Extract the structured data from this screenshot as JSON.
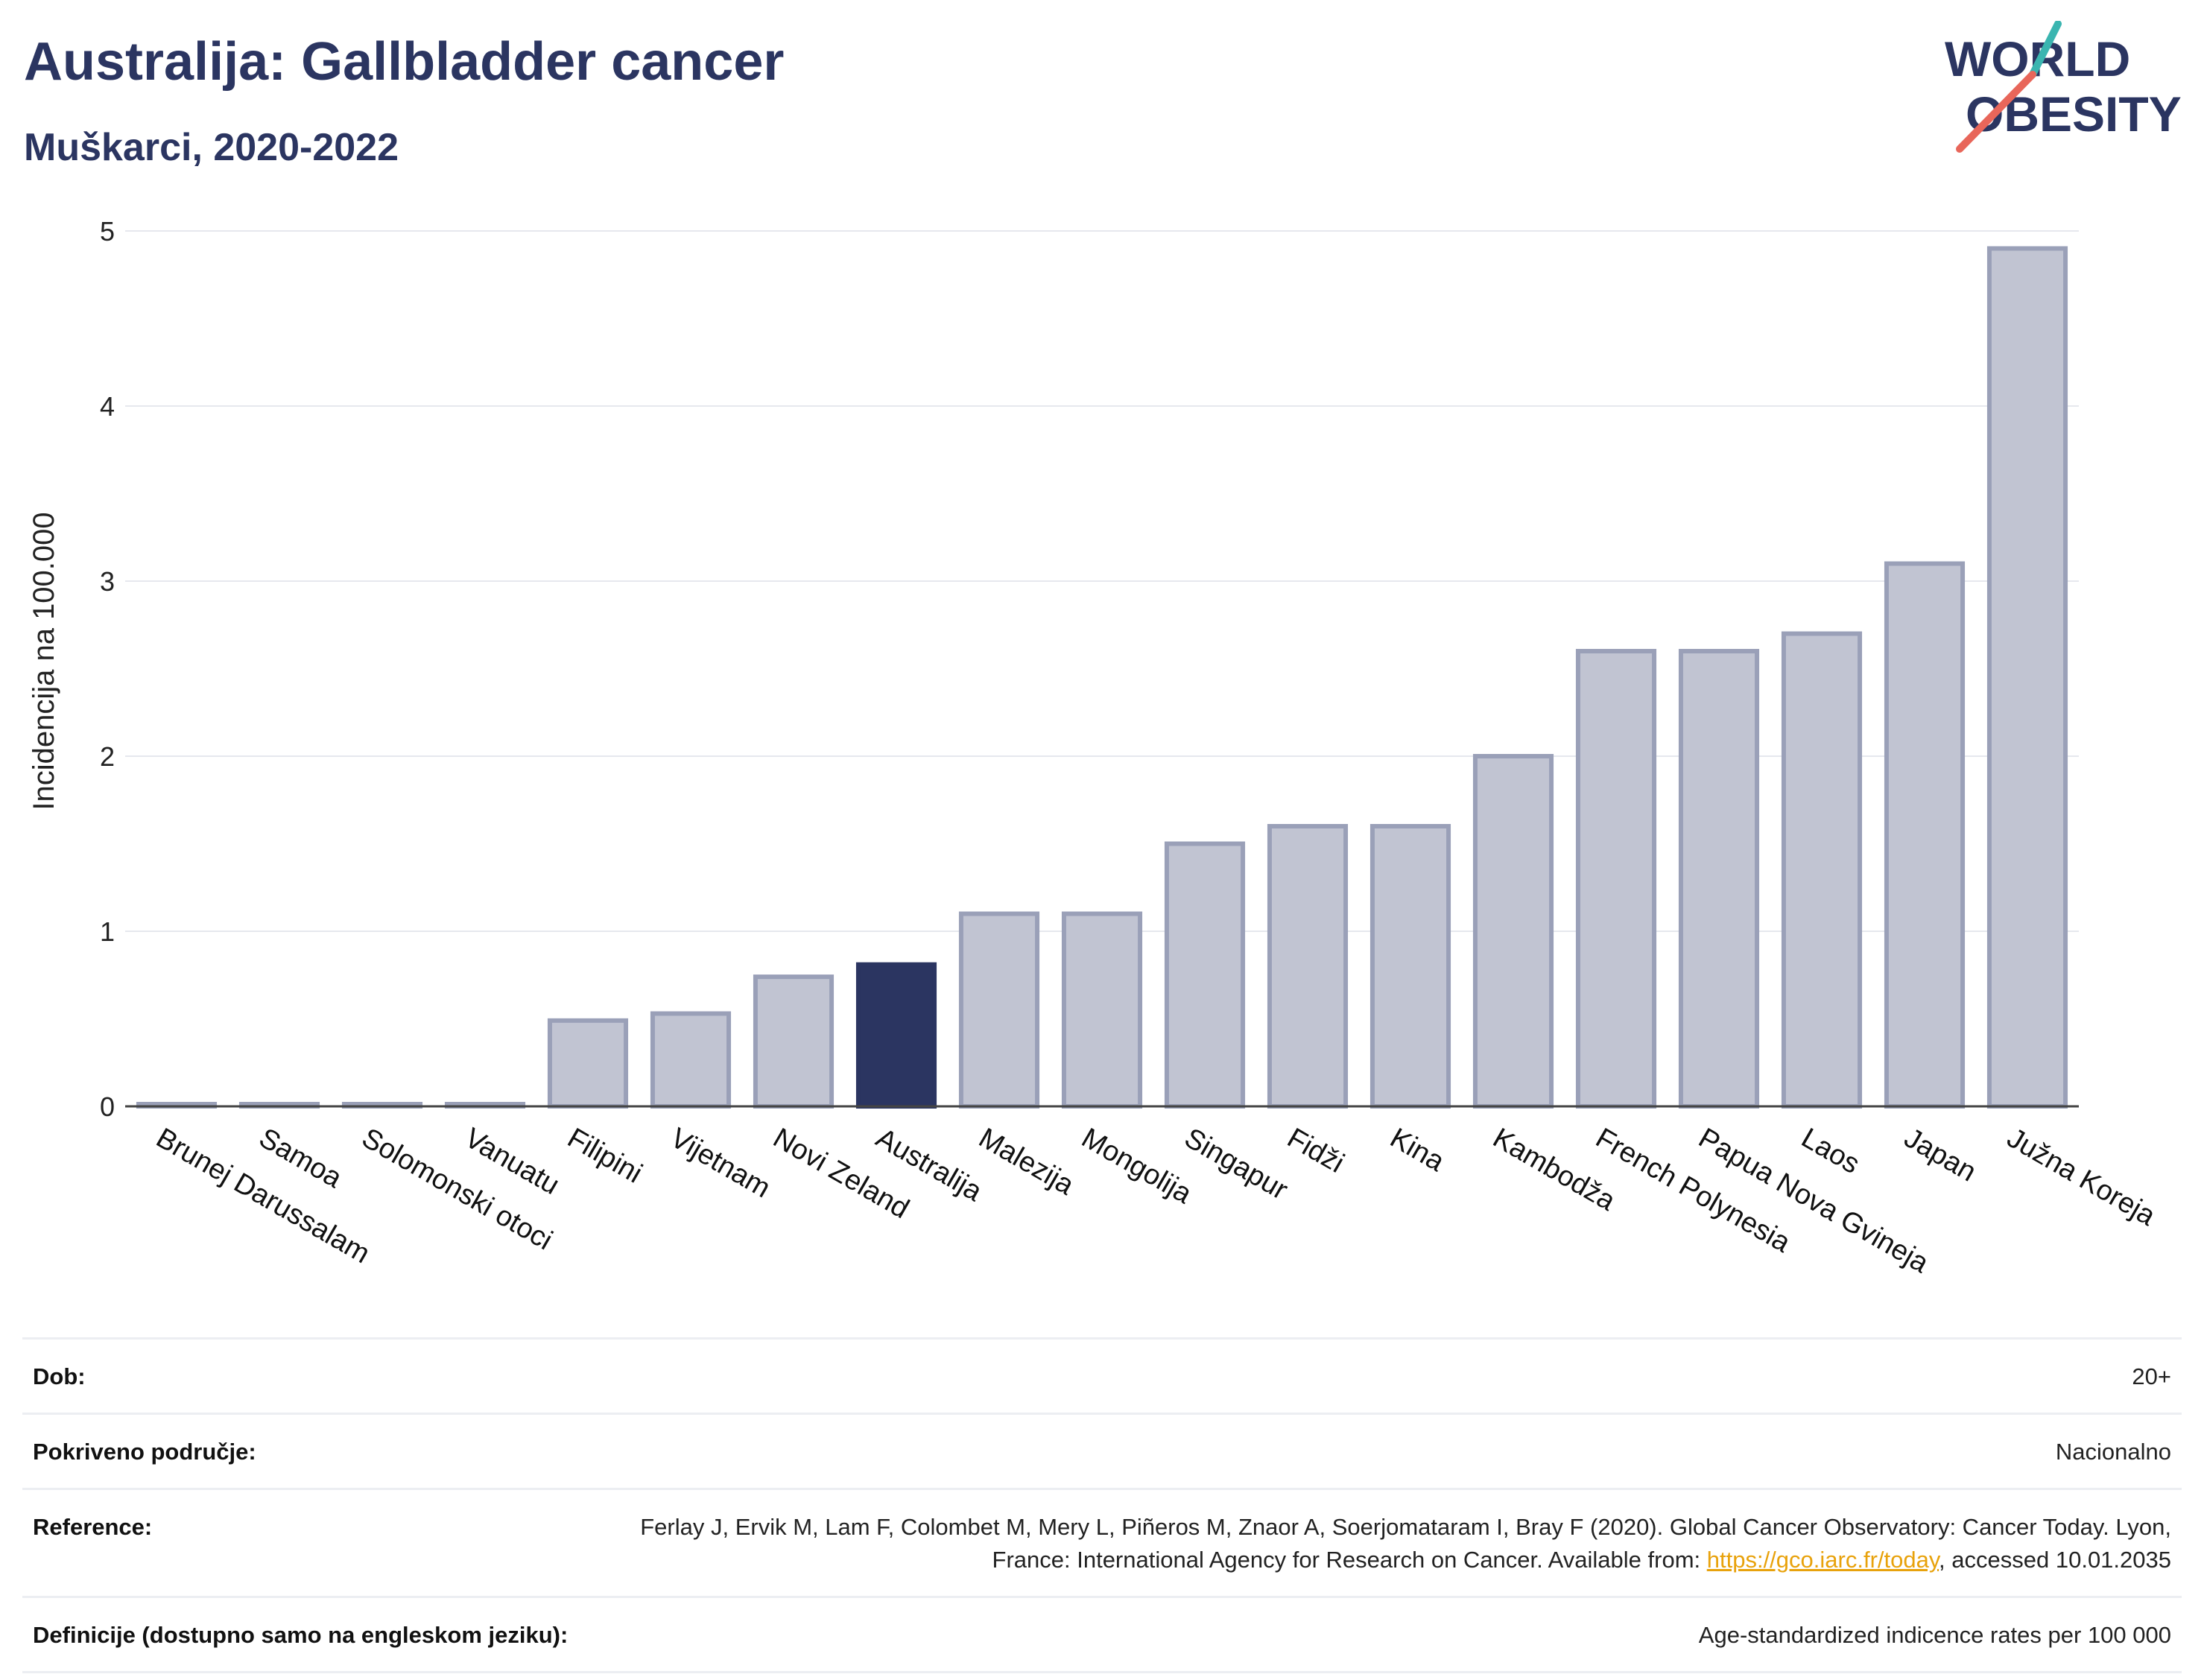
{
  "header": {
    "title": "Australija: Gallbladder cancer",
    "subtitle": "Muškarci, 2020-2022"
  },
  "logo": {
    "line1": "WORLD",
    "line2": "OBESITY",
    "accent_colors": [
      "#3ab5b0",
      "#e8665a"
    ]
  },
  "chart_data": {
    "type": "bar",
    "ylabel": "Incidencija na 100.000",
    "ylim": [
      0,
      5
    ],
    "yticks": [
      0,
      1,
      2,
      3,
      4,
      5
    ],
    "grid": true,
    "highlight": "Australija",
    "colors": {
      "bar": "#c1c4d2",
      "bar_border": "#9aa0b8",
      "highlight": "#2b3561"
    },
    "categories": [
      "Brunej Darussalam",
      "Samoa",
      "Solomonski otoci",
      "Vanuatu",
      "Filipini",
      "Vijetnam",
      "Novi Zeland",
      "Australija",
      "Malezija",
      "Mongolija",
      "Singapur",
      "Fidži",
      "Kina",
      "Kambodža",
      "French Polynesia",
      "Papua Nova Gvineja",
      "Laos",
      "Japan",
      "Južna Koreja"
    ],
    "values": [
      0.01,
      0.01,
      0.01,
      0.01,
      0.49,
      0.53,
      0.74,
      0.81,
      1.1,
      1.1,
      1.5,
      1.6,
      1.6,
      2.0,
      2.6,
      2.6,
      2.7,
      3.1,
      4.9
    ]
  },
  "meta": [
    {
      "label": "Dob:",
      "value": "20+"
    },
    {
      "label": "Pokriveno područje:",
      "value": "Nacionalno"
    },
    {
      "label": "Reference:",
      "value_before": "Ferlay J, Ervik M, Lam F, Colombet M, Mery L, Piñeros M, Znaor A, Soerjomataram I, Bray F (2020). Global Cancer Observatory: Cancer Today. Lyon, France: International Agency for Research on Cancer. Available from: ",
      "link": "https://gco.iarc.fr/today",
      "value_after": ", accessed 10.01.2035"
    },
    {
      "label": "Definicije (dostupno samo na engleskom jeziku):",
      "value": "Age-standardized indicence rates per 100 000"
    }
  ]
}
